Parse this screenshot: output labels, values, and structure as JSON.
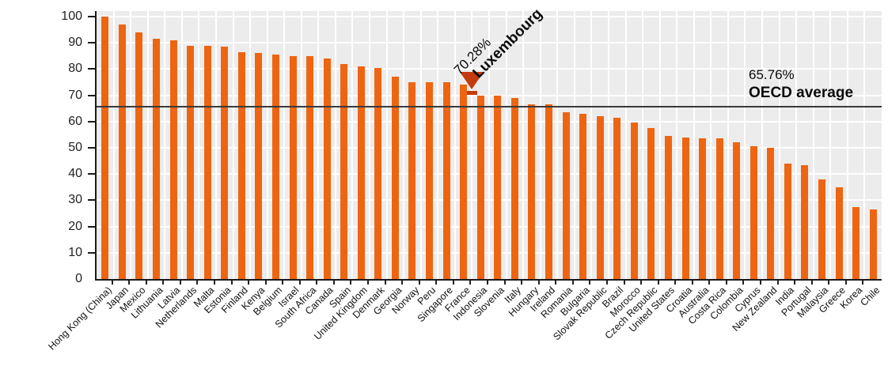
{
  "chart_data": {
    "type": "bar",
    "title": "",
    "unit": "%",
    "categories": [
      "Hong Kong (China)",
      "Japan",
      "Mexico",
      "Lithuania",
      "Latvia",
      "Netherlands",
      "Malta",
      "Estonia",
      "Finland",
      "Kenya",
      "Belgium",
      "Israel",
      "South Africa",
      "Canada",
      "Spain",
      "United Kingdom",
      "Denmark",
      "Georgia",
      "Norway",
      "Peru",
      "Singapore",
      "France",
      "Indonesia",
      "Slovenia",
      "Italy",
      "Hungary",
      "Ireland",
      "Romania",
      "Bulgaria",
      "Slovak Republic",
      "Brazil",
      "Morocco",
      "Czech Republic",
      "United States",
      "Croatia",
      "Australia",
      "Costa Rica",
      "Colombia",
      "Cyprus",
      "New Zealand",
      "India",
      "Portugal",
      "Malaysia",
      "Greece",
      "Korea",
      "Chile"
    ],
    "values": [
      100,
      97,
      94,
      91.5,
      91,
      89,
      89,
      88.5,
      86.5,
      86,
      85.5,
      85,
      85,
      84,
      82,
      81,
      80.5,
      77,
      75,
      75,
      75,
      74,
      70,
      70,
      69,
      66.5,
      66.5,
      63.5,
      63,
      62,
      61.5,
      59.5,
      57.5,
      54.5,
      54,
      53.5,
      53.5,
      52,
      50.5,
      50,
      44,
      43.5,
      38,
      35,
      27.5,
      26.5
    ],
    "ylim": [
      0,
      100
    ],
    "yticks": [
      0,
      10,
      20,
      30,
      40,
      50,
      60,
      70,
      80,
      90,
      100
    ],
    "grid": "on",
    "bar_color": "#EE6511",
    "plot_bg": "#ECECEC",
    "grid_color": "#FFFFFF",
    "highlight": {
      "label": "Luxembourg",
      "value_label": "70.28%",
      "value": 70.28,
      "insert_after_category": "France",
      "marker_color": "#C4390E"
    },
    "average_line": {
      "label": "OECD average",
      "value_label": "65.76%",
      "value": 65.76,
      "line_color": "#3A3A3A"
    }
  }
}
